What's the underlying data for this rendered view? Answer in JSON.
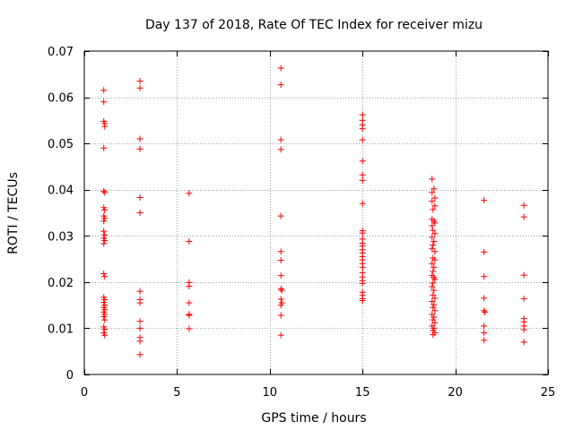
{
  "chart_data": {
    "type": "scatter",
    "title": "Day 137 of 2018, Rate Of TEC Index for receiver mizu",
    "xlabel": "GPS time / hours",
    "ylabel": "ROTI / TECUs",
    "xlim": [
      0,
      25
    ],
    "ylim": [
      0,
      0.07
    ],
    "xticks": [
      0,
      5,
      10,
      15,
      20,
      25
    ],
    "yticks": [
      0,
      0.01,
      0.02,
      0.03,
      0.04,
      0.05,
      0.06,
      0.07
    ],
    "xtick_labels": [
      "0",
      "5",
      "10",
      "15",
      "20",
      "25"
    ],
    "ytick_labels": [
      "0",
      "0.01",
      "0.02",
      "0.03",
      "0.04",
      "0.05",
      "0.06",
      "0.07"
    ],
    "grid": true,
    "marker": "+",
    "color": "#ff0000",
    "series": [
      {
        "points": [
          [
            1.05,
            0.0615
          ],
          [
            1.05,
            0.059
          ],
          [
            1.05,
            0.0548
          ],
          [
            1.1,
            0.0543
          ],
          [
            1.1,
            0.0537
          ],
          [
            1.05,
            0.049
          ],
          [
            1.05,
            0.0397
          ],
          [
            1.1,
            0.0394
          ],
          [
            1.05,
            0.0361
          ],
          [
            1.1,
            0.0356
          ],
          [
            1.05,
            0.0343
          ],
          [
            1.1,
            0.0338
          ],
          [
            1.05,
            0.0332
          ],
          [
            1.05,
            0.031
          ],
          [
            1.1,
            0.0302
          ],
          [
            1.05,
            0.0295
          ],
          [
            1.1,
            0.029
          ],
          [
            1.05,
            0.0283
          ],
          [
            1.05,
            0.0218
          ],
          [
            1.1,
            0.0212
          ],
          [
            1.05,
            0.0167
          ],
          [
            1.1,
            0.0162
          ],
          [
            1.05,
            0.0156
          ],
          [
            1.1,
            0.015
          ],
          [
            1.05,
            0.0145
          ],
          [
            1.1,
            0.014
          ],
          [
            1.05,
            0.0135
          ],
          [
            1.1,
            0.013
          ],
          [
            1.05,
            0.0125
          ],
          [
            1.1,
            0.0118
          ],
          [
            1.05,
            0.0103
          ],
          [
            1.1,
            0.0098
          ],
          [
            1.05,
            0.009
          ],
          [
            1.1,
            0.0085
          ],
          [
            3.0,
            0.0635
          ],
          [
            3.0,
            0.062
          ],
          [
            3.0,
            0.051
          ],
          [
            3.0,
            0.0488
          ],
          [
            3.0,
            0.0383
          ],
          [
            3.0,
            0.035
          ],
          [
            3.0,
            0.018
          ],
          [
            3.0,
            0.0162
          ],
          [
            3.0,
            0.0155
          ],
          [
            3.0,
            0.0115
          ],
          [
            3.0,
            0.01
          ],
          [
            3.0,
            0.008
          ],
          [
            3.0,
            0.0072
          ],
          [
            3.0,
            0.0043
          ],
          [
            5.65,
            0.0392
          ],
          [
            5.65,
            0.0288
          ],
          [
            5.65,
            0.0199
          ],
          [
            5.65,
            0.0191
          ],
          [
            5.65,
            0.0155
          ],
          [
            5.65,
            0.013
          ],
          [
            5.65,
            0.0128
          ],
          [
            5.65,
            0.0099
          ],
          [
            10.6,
            0.0663
          ],
          [
            10.6,
            0.0627
          ],
          [
            10.6,
            0.0508
          ],
          [
            10.6,
            0.0487
          ],
          [
            10.6,
            0.0343
          ],
          [
            10.6,
            0.0266
          ],
          [
            10.6,
            0.0247
          ],
          [
            10.6,
            0.0214
          ],
          [
            10.6,
            0.0185
          ],
          [
            10.65,
            0.0182
          ],
          [
            10.6,
            0.0163
          ],
          [
            10.65,
            0.0155
          ],
          [
            10.6,
            0.015
          ],
          [
            10.6,
            0.0128
          ],
          [
            10.6,
            0.0085
          ],
          [
            15.0,
            0.0562
          ],
          [
            15.0,
            0.055
          ],
          [
            15.0,
            0.054
          ],
          [
            15.0,
            0.0532
          ],
          [
            15.0,
            0.0508
          ],
          [
            15.0,
            0.0462
          ],
          [
            15.0,
            0.0432
          ],
          [
            15.0,
            0.042
          ],
          [
            15.0,
            0.037
          ],
          [
            15.0,
            0.0311
          ],
          [
            15.0,
            0.0306
          ],
          [
            15.0,
            0.0293
          ],
          [
            15.0,
            0.0284
          ],
          [
            15.0,
            0.0278
          ],
          [
            15.0,
            0.027
          ],
          [
            15.0,
            0.0263
          ],
          [
            15.0,
            0.0255
          ],
          [
            15.0,
            0.0248
          ],
          [
            15.0,
            0.024
          ],
          [
            15.0,
            0.0232
          ],
          [
            15.0,
            0.022
          ],
          [
            15.0,
            0.0211
          ],
          [
            15.0,
            0.0203
          ],
          [
            15.0,
            0.0197
          ],
          [
            15.0,
            0.0178
          ],
          [
            15.0,
            0.0171
          ],
          [
            15.0,
            0.0164
          ],
          [
            15.0,
            0.016
          ],
          [
            18.75,
            0.0423
          ],
          [
            18.85,
            0.0402
          ],
          [
            18.75,
            0.0394
          ],
          [
            18.9,
            0.0382
          ],
          [
            18.75,
            0.0375
          ],
          [
            18.9,
            0.0365
          ],
          [
            18.8,
            0.0357
          ],
          [
            18.75,
            0.0336
          ],
          [
            18.85,
            0.0332
          ],
          [
            18.9,
            0.0328
          ],
          [
            18.75,
            0.0322
          ],
          [
            18.8,
            0.0312
          ],
          [
            18.9,
            0.0305
          ],
          [
            18.75,
            0.0297
          ],
          [
            18.85,
            0.0288
          ],
          [
            18.8,
            0.028
          ],
          [
            18.75,
            0.0272
          ],
          [
            18.9,
            0.0266
          ],
          [
            18.8,
            0.0252
          ],
          [
            18.9,
            0.0248
          ],
          [
            18.75,
            0.024
          ],
          [
            18.85,
            0.0232
          ],
          [
            18.8,
            0.0223
          ],
          [
            18.75,
            0.0214
          ],
          [
            18.85,
            0.021
          ],
          [
            18.9,
            0.0206
          ],
          [
            18.8,
            0.0198
          ],
          [
            18.75,
            0.019
          ],
          [
            18.85,
            0.0182
          ],
          [
            18.8,
            0.0172
          ],
          [
            18.9,
            0.0165
          ],
          [
            18.75,
            0.0158
          ],
          [
            18.85,
            0.0151
          ],
          [
            18.8,
            0.0145
          ],
          [
            18.9,
            0.0138
          ],
          [
            18.75,
            0.013
          ],
          [
            18.85,
            0.0124
          ],
          [
            18.8,
            0.0118
          ],
          [
            18.9,
            0.0112
          ],
          [
            18.75,
            0.0105
          ],
          [
            18.85,
            0.01
          ],
          [
            18.8,
            0.0095
          ],
          [
            18.9,
            0.009
          ],
          [
            18.8,
            0.0086
          ],
          [
            21.55,
            0.0377
          ],
          [
            21.55,
            0.0265
          ],
          [
            21.55,
            0.0212
          ],
          [
            21.55,
            0.0165
          ],
          [
            21.55,
            0.0138
          ],
          [
            21.6,
            0.0135
          ],
          [
            21.55,
            0.0105
          ],
          [
            21.55,
            0.009
          ],
          [
            21.55,
            0.0074
          ],
          [
            23.7,
            0.0366
          ],
          [
            23.7,
            0.0341
          ],
          [
            23.7,
            0.0215
          ],
          [
            23.7,
            0.0164
          ],
          [
            23.7,
            0.0121
          ],
          [
            23.7,
            0.0114
          ],
          [
            23.7,
            0.0105
          ],
          [
            23.7,
            0.0097
          ],
          [
            23.7,
            0.007
          ]
        ]
      }
    ]
  }
}
